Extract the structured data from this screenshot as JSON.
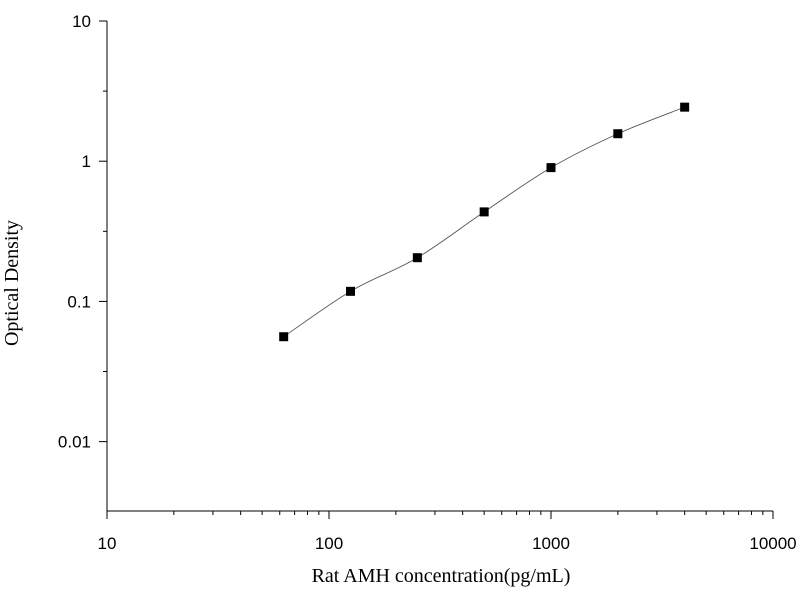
{
  "chart_data": {
    "type": "scatter",
    "title": "",
    "xlabel": "Rat AMH concentration(pg/mL)",
    "ylabel": "Optical Density",
    "xscale": "log",
    "yscale": "log",
    "xlim": [
      10,
      10000
    ],
    "ylim": [
      0.0032,
      10
    ],
    "x_tick_labels": [
      "10",
      "100",
      "1000",
      "10000"
    ],
    "y_tick_labels": [
      "0.01",
      "0.1",
      "1",
      "10"
    ],
    "grid": false,
    "legend": "none",
    "marker_color": "#000000",
    "curve_color": "#555555",
    "series": [
      {
        "x": [
          62.5,
          125,
          250,
          500,
          1000,
          2000,
          4000
        ],
        "y": [
          0.056,
          0.118,
          0.205,
          0.435,
          0.9,
          1.57,
          2.43
        ]
      }
    ]
  }
}
